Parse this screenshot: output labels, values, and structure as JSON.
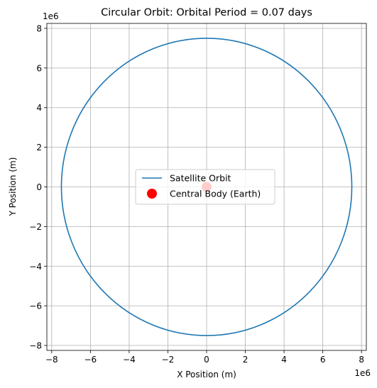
{
  "chart_data": {
    "type": "line",
    "title": "Circular Orbit: Orbital Period = 0.07 days",
    "xlabel": "X Position (m)",
    "ylabel": "Y Position (m)",
    "xlim": [
      -8.25,
      8.25
    ],
    "ylim": [
      -8.25,
      8.25
    ],
    "x_ticks": [
      -8,
      -6,
      -4,
      -2,
      0,
      2,
      4,
      6,
      8
    ],
    "y_ticks": [
      -8,
      -6,
      -4,
      -2,
      0,
      2,
      4,
      6,
      8
    ],
    "x_tick_labels": [
      "−8",
      "−6",
      "−4",
      "−2",
      "0",
      "2",
      "4",
      "6",
      "8"
    ],
    "y_tick_labels": [
      "−8",
      "−6",
      "−4",
      "−2",
      "0",
      "2",
      "4",
      "6",
      "8"
    ],
    "x_offset_label": "1e6",
    "y_offset_label": "1e6",
    "grid": true,
    "legend_position": "center",
    "series": [
      {
        "name": "Satellite Orbit",
        "kind": "line",
        "shape": "circle",
        "center": [
          0,
          0
        ],
        "radius": 7.5,
        "color": "#1f77b4"
      },
      {
        "name": "Central Body (Earth)",
        "kind": "scatter",
        "points": [
          [
            0,
            0
          ]
        ],
        "color": "#ff0000"
      }
    ]
  }
}
